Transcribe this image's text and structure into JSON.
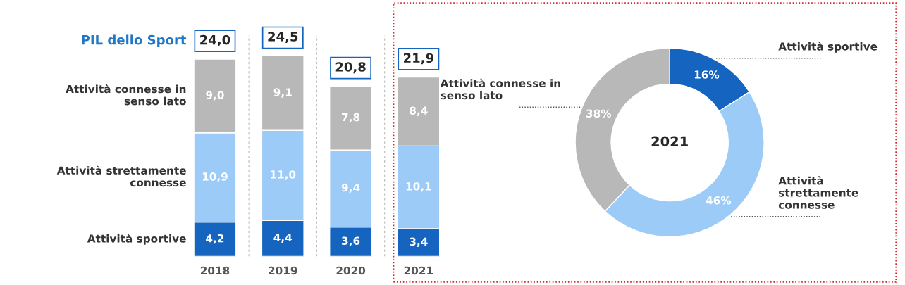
{
  "chart_data": [
    {
      "type": "bar",
      "stacked": true,
      "categories": [
        "2018",
        "2019",
        "2020",
        "2021"
      ],
      "annotations": [
        "PIL dello Sport"
      ],
      "series": [
        {
          "name": "Attività sportive",
          "color": "#1565c0",
          "values": [
            4.2,
            4.4,
            3.6,
            3.4
          ],
          "value_labels": [
            "4,2",
            "4,4",
            "3,6",
            "3,4"
          ]
        },
        {
          "name": "Attività strettamente connesse",
          "color": "#9ccbf7",
          "values": [
            10.9,
            11.0,
            9.4,
            10.1
          ],
          "value_labels": [
            "10,9",
            "11,0",
            "9,4",
            "10,1"
          ]
        },
        {
          "name": "Attività connesse in senso lato",
          "color": "#b8b8b8",
          "values": [
            9.0,
            9.1,
            7.8,
            8.4
          ],
          "value_labels": [
            "9,0",
            "9,1",
            "7,8",
            "8,4"
          ]
        }
      ],
      "totals": [
        "24,0",
        "24,5",
        "20,8",
        "21,9"
      ]
    },
    {
      "type": "donut",
      "title": "2021",
      "categories": [
        "Attività sportive",
        "Attività strettamente connesse",
        "Attività connesse in senso lato"
      ],
      "values": [
        16,
        46,
        38
      ],
      "colors": [
        "#1565c0",
        "#9ccbf7",
        "#b8b8b8"
      ],
      "value_labels": [
        "16%",
        "46%",
        "38%"
      ]
    }
  ]
}
